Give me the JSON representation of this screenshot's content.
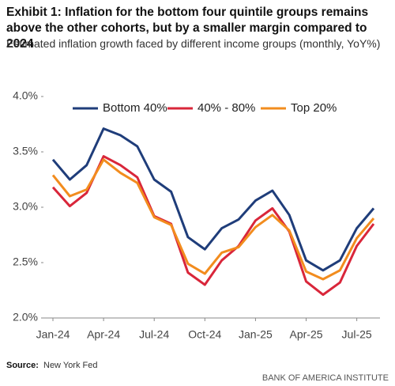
{
  "chart_data": {
    "type": "line",
    "title": "Exhibit 1: Inflation for the bottom four quintile groups remains above the other cohorts, but by a smaller margin compared to 2024",
    "subtitle": "Estimated inflation growth faced by different income groups (monthly, YoY%)",
    "source_label": "Source:",
    "source": "New York Fed",
    "brand": "BANK OF AMERICA INSTITUTE",
    "categories": [
      "Jan-24",
      null,
      null,
      "Apr-24",
      null,
      null,
      "Jul-24",
      null,
      null,
      "Oct-24",
      null,
      null,
      "Jan-25",
      null,
      null,
      "Apr-25",
      null,
      null,
      "Jul-25",
      null
    ],
    "series": [
      {
        "name": "Bottom 40%",
        "color": "#1f3d7a",
        "values": [
          3.43,
          3.25,
          3.38,
          3.71,
          3.65,
          3.55,
          3.25,
          3.14,
          2.73,
          2.62,
          2.81,
          2.89,
          3.06,
          3.15,
          2.93,
          2.52,
          2.43,
          2.52,
          2.81,
          2.99
        ]
      },
      {
        "name": "40% - 80%",
        "color": "#d9263a",
        "values": [
          3.18,
          3.01,
          3.13,
          3.46,
          3.38,
          3.27,
          2.92,
          2.85,
          2.41,
          2.3,
          2.52,
          2.65,
          2.88,
          2.99,
          2.78,
          2.33,
          2.21,
          2.32,
          2.65,
          2.85
        ]
      },
      {
        "name": "Top 20%",
        "color": "#f28c1e",
        "values": [
          3.29,
          3.1,
          3.16,
          3.43,
          3.31,
          3.22,
          2.91,
          2.84,
          2.49,
          2.4,
          2.59,
          2.64,
          2.82,
          2.93,
          2.79,
          2.42,
          2.35,
          2.43,
          2.72,
          2.9
        ]
      }
    ],
    "ylim": [
      2,
      4
    ],
    "yticks": [
      {
        "value": 2,
        "label": "2.0%"
      },
      {
        "value": 2.5,
        "label": "2.5%"
      },
      {
        "value": 3,
        "label": "3.0%"
      },
      {
        "value": 3.5,
        "label": "3.5%"
      },
      {
        "value": 4,
        "label": "4.0%"
      }
    ],
    "grid": false
  }
}
